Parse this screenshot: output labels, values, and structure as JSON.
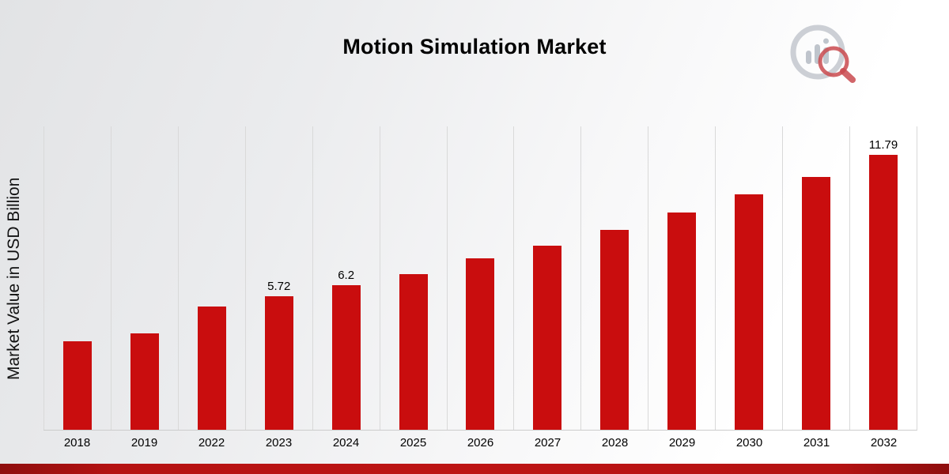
{
  "page": {
    "title": "Motion Simulation Market"
  },
  "chart_data": {
    "type": "bar",
    "title": "Motion Simulation Market",
    "xlabel": "",
    "ylabel": "Market Value in USD Billion",
    "categories": [
      "2018",
      "2019",
      "2022",
      "2023",
      "2024",
      "2025",
      "2026",
      "2027",
      "2028",
      "2029",
      "2030",
      "2031",
      "2032"
    ],
    "values": [
      3.8,
      4.13,
      5.28,
      5.72,
      6.2,
      6.68,
      7.33,
      7.88,
      8.55,
      9.3,
      10.1,
      10.85,
      11.79
    ],
    "bar_labels": [
      null,
      null,
      null,
      "5.72",
      "6.2",
      null,
      null,
      null,
      null,
      null,
      null,
      null,
      "11.79"
    ],
    "ylim": [
      0,
      13
    ],
    "grid": "vertical-only",
    "legend": "none",
    "colors": {
      "bar": "#c90d0e",
      "gridline": "#d9d9d9",
      "axis": "#cccccc",
      "text": "#000000",
      "footer_bar": "#b51212",
      "logo_gray": "#bfc4cb",
      "logo_red": "#c4373c"
    }
  }
}
